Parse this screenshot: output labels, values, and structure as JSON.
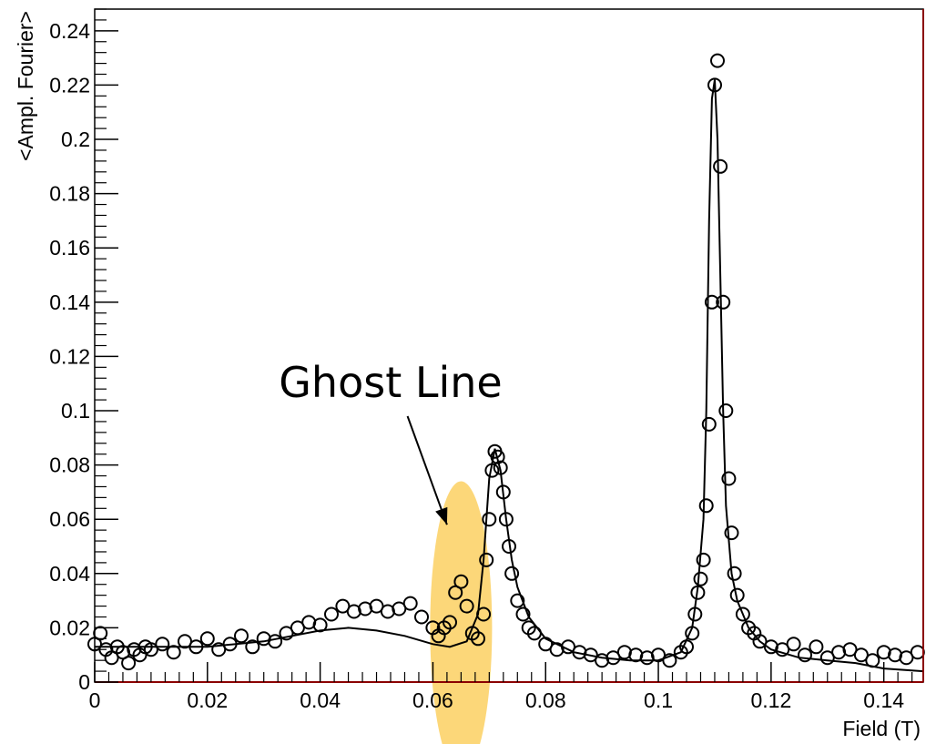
{
  "chart_data": {
    "type": "scatter",
    "title": "",
    "xlabel": "Field (T)",
    "ylabel": "<Ampl. Fourier>",
    "xlim": [
      0,
      0.147
    ],
    "ylim": [
      0,
      0.248
    ],
    "grid": false,
    "legend": "none",
    "x_ticks": [
      0,
      0.02,
      0.04,
      0.06,
      0.08,
      0.1,
      0.12,
      0.14
    ],
    "x_tick_labels": [
      "0",
      "0.02",
      "0.04",
      "0.06",
      "0.08",
      "0.1",
      "0.12",
      "0.14"
    ],
    "y_ticks": [
      0,
      0.02,
      0.04,
      0.06,
      0.08,
      0.1,
      0.12,
      0.14,
      0.16,
      0.18,
      0.2,
      0.22,
      0.24
    ],
    "y_tick_labels": [
      "0",
      "0.02",
      "0.04",
      "0.06",
      "0.08",
      "0.1",
      "0.12",
      "0.14",
      "0.16",
      "0.18",
      "0.2",
      "0.22",
      "0.24"
    ],
    "series": [
      {
        "kind": "markers",
        "marker": "open-circle",
        "color": "#000000",
        "x": [
          0.0,
          0.001,
          0.002,
          0.003,
          0.004,
          0.005,
          0.006,
          0.007,
          0.008,
          0.009,
          0.01,
          0.012,
          0.014,
          0.016,
          0.018,
          0.02,
          0.022,
          0.024,
          0.026,
          0.028,
          0.03,
          0.032,
          0.034,
          0.036,
          0.038,
          0.04,
          0.042,
          0.044,
          0.046,
          0.048,
          0.05,
          0.052,
          0.054,
          0.056,
          0.058,
          0.06,
          0.061,
          0.062,
          0.063,
          0.064,
          0.065,
          0.066,
          0.067,
          0.068,
          0.069,
          0.0695,
          0.07,
          0.0705,
          0.071,
          0.0715,
          0.072,
          0.0725,
          0.073,
          0.0735,
          0.074,
          0.075,
          0.076,
          0.077,
          0.078,
          0.08,
          0.082,
          0.084,
          0.086,
          0.088,
          0.09,
          0.092,
          0.094,
          0.096,
          0.098,
          0.1,
          0.102,
          0.104,
          0.105,
          0.106,
          0.1065,
          0.107,
          0.1075,
          0.108,
          0.1085,
          0.109,
          0.1095,
          0.11,
          0.1105,
          0.111,
          0.1115,
          0.112,
          0.1125,
          0.113,
          0.1135,
          0.114,
          0.115,
          0.116,
          0.117,
          0.118,
          0.12,
          0.122,
          0.124,
          0.126,
          0.128,
          0.13,
          0.132,
          0.134,
          0.136,
          0.138,
          0.14,
          0.142,
          0.144,
          0.146
        ],
        "y": [
          0.014,
          0.018,
          0.012,
          0.009,
          0.013,
          0.011,
          0.007,
          0.012,
          0.01,
          0.013,
          0.012,
          0.014,
          0.011,
          0.015,
          0.013,
          0.016,
          0.012,
          0.014,
          0.017,
          0.013,
          0.016,
          0.015,
          0.018,
          0.02,
          0.022,
          0.021,
          0.025,
          0.028,
          0.026,
          0.027,
          0.028,
          0.026,
          0.027,
          0.029,
          0.024,
          0.02,
          0.017,
          0.02,
          0.022,
          0.033,
          0.037,
          0.028,
          0.018,
          0.016,
          0.025,
          0.045,
          0.06,
          0.078,
          0.085,
          0.083,
          0.079,
          0.07,
          0.06,
          0.05,
          0.04,
          0.03,
          0.025,
          0.02,
          0.018,
          0.014,
          0.012,
          0.013,
          0.011,
          0.01,
          0.008,
          0.009,
          0.011,
          0.01,
          0.009,
          0.01,
          0.008,
          0.011,
          0.013,
          0.018,
          0.025,
          0.033,
          0.038,
          0.045,
          0.065,
          0.095,
          0.14,
          0.22,
          0.229,
          0.19,
          0.14,
          0.1,
          0.075,
          0.055,
          0.04,
          0.032,
          0.025,
          0.02,
          0.018,
          0.015,
          0.013,
          0.012,
          0.014,
          0.01,
          0.013,
          0.009,
          0.011,
          0.012,
          0.01,
          0.008,
          0.011,
          0.01,
          0.009,
          0.011
        ]
      },
      {
        "kind": "line",
        "color": "#000000",
        "x": [
          0.0,
          0.01,
          0.02,
          0.03,
          0.035,
          0.04,
          0.045,
          0.05,
          0.055,
          0.06,
          0.063,
          0.066,
          0.068,
          0.069,
          0.07,
          0.071,
          0.072,
          0.073,
          0.074,
          0.075,
          0.077,
          0.08,
          0.085,
          0.09,
          0.095,
          0.1,
          0.104,
          0.106,
          0.107,
          0.108,
          0.1085,
          0.109,
          0.1095,
          0.11,
          0.1105,
          0.111,
          0.1115,
          0.112,
          0.113,
          0.114,
          0.116,
          0.118,
          0.12,
          0.125,
          0.13,
          0.135,
          0.14,
          0.147
        ],
        "y": [
          0.013,
          0.013,
          0.013,
          0.015,
          0.017,
          0.019,
          0.02,
          0.019,
          0.017,
          0.014,
          0.013,
          0.015,
          0.025,
          0.045,
          0.075,
          0.086,
          0.078,
          0.06,
          0.045,
          0.035,
          0.024,
          0.016,
          0.011,
          0.009,
          0.008,
          0.008,
          0.011,
          0.02,
          0.035,
          0.06,
          0.1,
          0.17,
          0.215,
          0.222,
          0.2,
          0.15,
          0.1,
          0.065,
          0.04,
          0.03,
          0.02,
          0.015,
          0.012,
          0.009,
          0.008,
          0.007,
          0.005,
          0.004
        ]
      }
    ],
    "highlight": {
      "label": "",
      "color": "#fcd062",
      "center_x": 0.065,
      "center_y": 0.02,
      "half_width_x": 0.0055,
      "half_height_y": 0.054
    },
    "annotations": [
      {
        "text": "Ghost Line",
        "text_x": 0.0525,
        "text_y": 0.105,
        "arrow_from_x": 0.0555,
        "arrow_from_y": 0.098,
        "arrow_to_x": 0.0625,
        "arrow_to_y": 0.058
      }
    ]
  }
}
